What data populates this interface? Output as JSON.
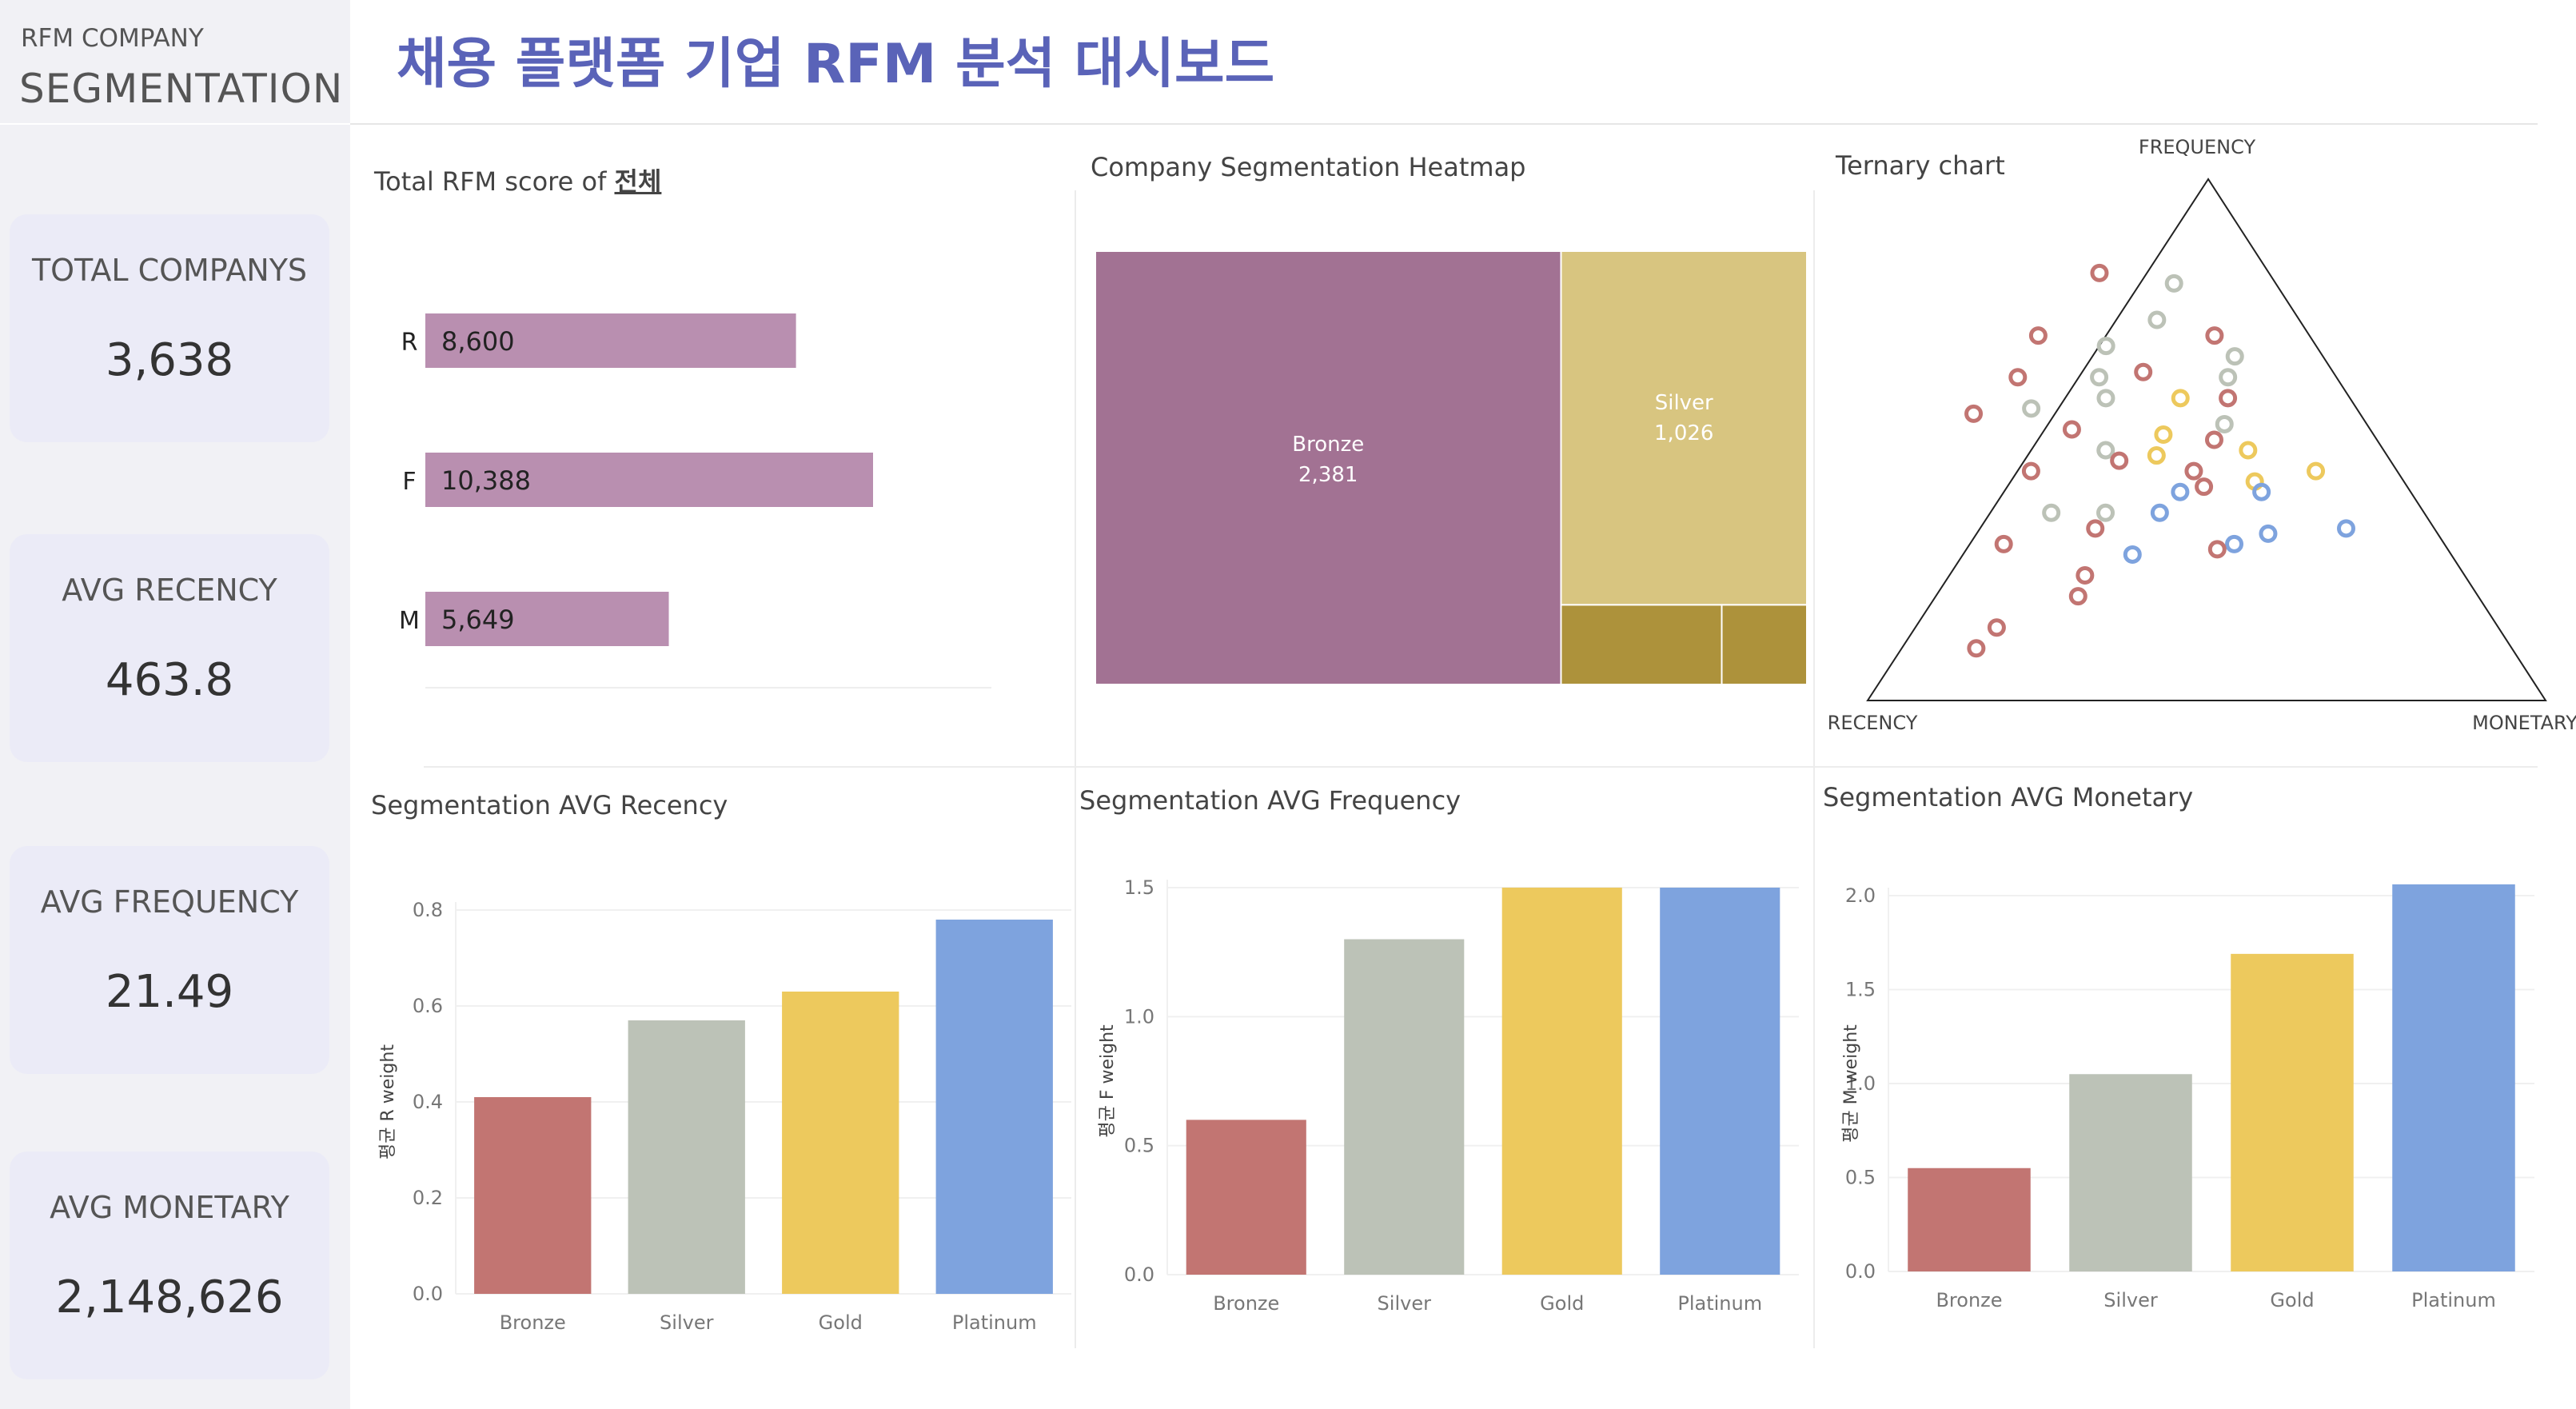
{
  "sidebar": {
    "brand_small": "RFM COMPANY",
    "brand_big": "SEGMENTATION",
    "kpis": [
      {
        "label": "TOTAL COMPANYS",
        "value": "3,638"
      },
      {
        "label": "AVG RECENCY",
        "value": "463.8"
      },
      {
        "label": "AVG FREQUENCY",
        "value": "21.49"
      },
      {
        "label": "AVG MONETARY",
        "value": "2,148,626"
      }
    ]
  },
  "header": {
    "title": "채용 플랫폼 기업 RFM 분석 대시보드"
  },
  "colors": {
    "bronze": "#c27572",
    "silver": "#bcc2b7",
    "gold": "#edc95d",
    "platinum": "#7ea3de",
    "rfm_bar": "#b98fb0",
    "tree_bronze": "#a27293",
    "tree_silver": "#d8c580",
    "tree_small": "#ad923b",
    "title": "#5a63b8"
  },
  "panels": {
    "rfm_score": {
      "title_prefix": "Total RFM score of ",
      "title_link": "전체"
    },
    "heatmap": {
      "title": "Company Segmentation Heatmap"
    },
    "ternary": {
      "title": "Ternary chart",
      "label_top": "FREQUENCY",
      "label_left": "RECENCY",
      "label_right": "MONETARY"
    },
    "recency": {
      "title": "Segmentation AVG Recency"
    },
    "frequency": {
      "title": "Segmentation AVG Frequency"
    },
    "monetary": {
      "title": "Segmentation AVG Monetary"
    }
  },
  "chart_data": [
    {
      "id": "rfm_score",
      "type": "bar",
      "orientation": "horizontal",
      "categories": [
        "R",
        "F",
        "M"
      ],
      "values": [
        8600,
        10388,
        5649
      ],
      "value_labels": [
        "8,600",
        "10,388",
        "5,649"
      ]
    },
    {
      "id": "heatmap",
      "type": "heatmap",
      "cells": [
        {
          "name": "Bronze",
          "label": "2,381",
          "value": 2381,
          "color": "#a27293"
        },
        {
          "name": "Silver",
          "label": "1,026",
          "value": 1026,
          "color": "#d8c580"
        },
        {
          "name": "",
          "label": "",
          "value": 151,
          "color": "#ad923b"
        },
        {
          "name": "",
          "label": "",
          "value": 80,
          "color": "#ad923b"
        }
      ]
    },
    {
      "id": "ternary",
      "type": "scatter",
      "axes": [
        "RECENCY",
        "FREQUENCY",
        "MONETARY"
      ],
      "points": [
        {
          "r": 0.25,
          "f": 0.82,
          "m": -0.07,
          "seg": "bronze"
        },
        {
          "r": 0.15,
          "f": 0.8,
          "m": 0.05,
          "seg": "silver"
        },
        {
          "r": 0.21,
          "f": 0.73,
          "m": 0.06,
          "seg": "silver"
        },
        {
          "r": 0.4,
          "f": 0.7,
          "m": -0.1,
          "seg": "bronze"
        },
        {
          "r": 0.14,
          "f": 0.7,
          "m": 0.16,
          "seg": "bronze"
        },
        {
          "r": 0.31,
          "f": 0.68,
          "m": 0.01,
          "seg": "silver"
        },
        {
          "r": 0.13,
          "f": 0.66,
          "m": 0.21,
          "seg": "silver"
        },
        {
          "r": 0.28,
          "f": 0.63,
          "m": 0.09,
          "seg": "bronze"
        },
        {
          "r": 0.47,
          "f": 0.62,
          "m": -0.09,
          "seg": "bronze"
        },
        {
          "r": 0.35,
          "f": 0.62,
          "m": 0.03,
          "seg": "silver"
        },
        {
          "r": 0.16,
          "f": 0.62,
          "m": 0.22,
          "seg": "silver"
        },
        {
          "r": 0.48,
          "f": 0.56,
          "m": -0.04,
          "seg": "silver"
        },
        {
          "r": 0.36,
          "f": 0.58,
          "m": 0.06,
          "seg": "silver"
        },
        {
          "r": 0.25,
          "f": 0.58,
          "m": 0.17,
          "seg": "gold"
        },
        {
          "r": 0.18,
          "f": 0.58,
          "m": 0.24,
          "seg": "bronze"
        },
        {
          "r": 0.57,
          "f": 0.55,
          "m": -0.12,
          "seg": "bronze"
        },
        {
          "r": 0.44,
          "f": 0.52,
          "m": 0.04,
          "seg": "bronze"
        },
        {
          "r": 0.21,
          "f": 0.53,
          "m": 0.26,
          "seg": "silver"
        },
        {
          "r": 0.2,
          "f": 0.48,
          "m": 0.32,
          "seg": "gold"
        },
        {
          "r": 0.24,
          "f": 0.5,
          "m": 0.26,
          "seg": "bronze"
        },
        {
          "r": 0.31,
          "f": 0.51,
          "m": 0.18,
          "seg": "gold"
        },
        {
          "r": 0.41,
          "f": 0.48,
          "m": 0.11,
          "seg": "silver"
        },
        {
          "r": 0.34,
          "f": 0.47,
          "m": 0.19,
          "seg": "gold"
        },
        {
          "r": 0.4,
          "f": 0.46,
          "m": 0.14,
          "seg": "bronze"
        },
        {
          "r": 0.12,
          "f": 0.44,
          "m": 0.44,
          "seg": "gold"
        },
        {
          "r": 0.22,
          "f": 0.42,
          "m": 0.36,
          "seg": "gold"
        },
        {
          "r": 0.3,
          "f": 0.44,
          "m": 0.26,
          "seg": "bronze"
        },
        {
          "r": 0.54,
          "f": 0.44,
          "m": 0.02,
          "seg": "bronze"
        },
        {
          "r": 0.22,
          "f": 0.4,
          "m": 0.38,
          "seg": "platinum"
        },
        {
          "r": 0.3,
          "f": 0.41,
          "m": 0.29,
          "seg": "bronze"
        },
        {
          "r": 0.34,
          "f": 0.4,
          "m": 0.26,
          "seg": "platinum"
        },
        {
          "r": 0.47,
          "f": 0.36,
          "m": 0.17,
          "seg": "silver"
        },
        {
          "r": 0.39,
          "f": 0.36,
          "m": 0.25,
          "seg": "platinum"
        },
        {
          "r": 0.13,
          "f": 0.33,
          "m": 0.54,
          "seg": "platinum"
        },
        {
          "r": 0.55,
          "f": 0.36,
          "m": 0.09,
          "seg": "silver"
        },
        {
          "r": 0.25,
          "f": 0.32,
          "m": 0.43,
          "seg": "platinum"
        },
        {
          "r": 0.5,
          "f": 0.33,
          "m": 0.17,
          "seg": "bronze"
        },
        {
          "r": 0.31,
          "f": 0.3,
          "m": 0.39,
          "seg": "platinum"
        },
        {
          "r": 0.65,
          "f": 0.3,
          "m": 0.05,
          "seg": "bronze"
        },
        {
          "r": 0.47,
          "f": 0.28,
          "m": 0.25,
          "seg": "platinum"
        },
        {
          "r": 0.34,
          "f": 0.29,
          "m": 0.37,
          "seg": "bronze"
        },
        {
          "r": 0.56,
          "f": 0.24,
          "m": 0.2,
          "seg": "bronze"
        },
        {
          "r": 0.59,
          "f": 0.2,
          "m": 0.21,
          "seg": "bronze"
        },
        {
          "r": 0.74,
          "f": 0.14,
          "m": 0.12,
          "seg": "bronze"
        },
        {
          "r": 0.79,
          "f": 0.1,
          "m": 0.11,
          "seg": "bronze"
        }
      ]
    },
    {
      "id": "recency",
      "type": "bar",
      "categories": [
        "Bronze",
        "Silver",
        "Gold",
        "Platinum"
      ],
      "values": [
        0.41,
        0.57,
        0.63,
        0.78
      ],
      "ylim": [
        0,
        0.8
      ],
      "yticks": [
        0.0,
        0.2,
        0.4,
        0.6,
        0.8
      ],
      "ylabel": "평균 R weight"
    },
    {
      "id": "frequency",
      "type": "bar",
      "categories": [
        "Bronze",
        "Silver",
        "Gold",
        "Platinum"
      ],
      "values": [
        0.6,
        1.3,
        1.5,
        1.5
      ],
      "ylim": [
        0,
        1.5
      ],
      "yticks": [
        0.0,
        0.5,
        1.0,
        1.5
      ],
      "ylabel": "평균 F weight"
    },
    {
      "id": "monetary",
      "type": "bar",
      "categories": [
        "Bronze",
        "Silver",
        "Gold",
        "Platinum"
      ],
      "values": [
        0.55,
        1.05,
        1.69,
        2.06
      ],
      "ylim": [
        0,
        2.0
      ],
      "yticks": [
        0.0,
        0.5,
        1.0,
        1.5,
        2.0
      ],
      "ylabel": "평균 M weight"
    }
  ]
}
